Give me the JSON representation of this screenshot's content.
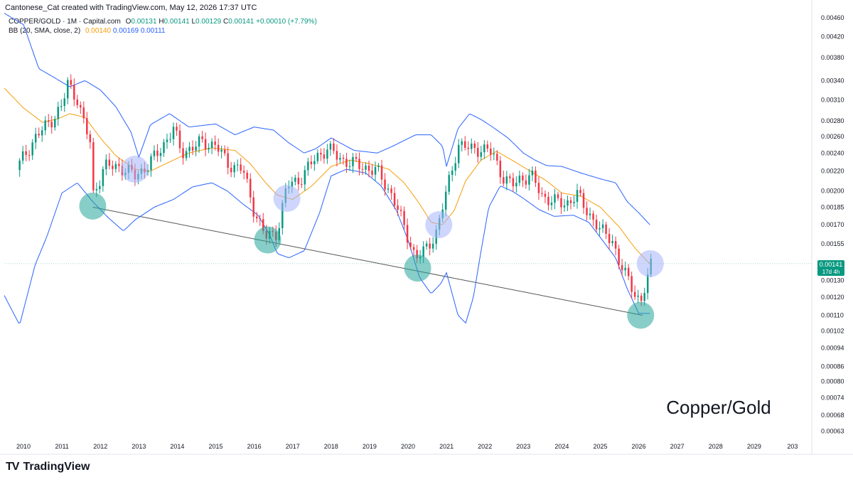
{
  "header": {
    "credit": "Cantonese_Cat created with TradingView.com, May 12, 2026 17:37 UTC"
  },
  "legend": {
    "symbol": "COPPER/GOLD · 1M · Capital.com",
    "ohlc": [
      {
        "k": "O",
        "v": "0.00131"
      },
      {
        "k": "H",
        "v": "0.00141"
      },
      {
        "k": "L",
        "v": "0.00129"
      },
      {
        "k": "C",
        "v": "0.00141"
      }
    ],
    "change": "+0.00010 (+7.79%)",
    "bb_label": "BB (20, SMA, close, 2)",
    "bb_values": [
      "0.00140",
      "0.00169",
      "0.00111"
    ]
  },
  "price_tag": {
    "value": "0.00141",
    "countdown": "17d 4h"
  },
  "watermark": "Copper/Gold",
  "brand": {
    "logo": "TV",
    "name": "TradingView"
  },
  "colors": {
    "up": "#089981",
    "down": "#f23645",
    "basis": "#f59e0b",
    "bands": "#2962ff",
    "green_circle": "#26a69a",
    "blue_circle": "#a5b4fc",
    "trendline": "#555555"
  },
  "chart_data": {
    "type": "candlestick",
    "interval": "1M",
    "x_range": [
      2009.5,
      2030.5
    ],
    "y_range": [
      0.00061,
      0.00471
    ],
    "y_scale": "log",
    "grid": false,
    "y_ticks": [
      "0.00460",
      "0.00420",
      "0.00380",
      "0.00340",
      "0.00310",
      "0.00280",
      "0.00260",
      "0.00240",
      "0.00220",
      "0.00200",
      "0.00185",
      "0.00170",
      "0.00155",
      "0.00141",
      "0.00130",
      "0.00120",
      "0.00110",
      "0.00102",
      "0.00094",
      "0.00086",
      "0.00080",
      "0.00074",
      "0.00068",
      "0.00063"
    ],
    "x_ticks": [
      "2010",
      "2011",
      "2012",
      "2013",
      "2014",
      "2015",
      "2016",
      "2017",
      "2018",
      "2019",
      "2020",
      "2021",
      "2022",
      "2023",
      "2024",
      "2025",
      "2026",
      "2027",
      "2028",
      "2029",
      "203"
    ],
    "close_anchors": [
      [
        2009.9,
        0.00228
      ],
      [
        2010.3,
        0.00258
      ],
      [
        2010.7,
        0.0028
      ],
      [
        2011.0,
        0.003
      ],
      [
        2011.15,
        0.00335
      ],
      [
        2011.4,
        0.00312
      ],
      [
        2011.55,
        0.0028
      ],
      [
        2011.75,
        0.0025
      ],
      [
        2011.8,
        0.00195
      ],
      [
        2012.1,
        0.00225
      ],
      [
        2012.5,
        0.00225
      ],
      [
        2012.9,
        0.00215
      ],
      [
        2013.2,
        0.00225
      ],
      [
        2013.5,
        0.0024
      ],
      [
        2013.9,
        0.0027
      ],
      [
        2014.1,
        0.0024
      ],
      [
        2014.6,
        0.00252
      ],
      [
        2015.0,
        0.0025
      ],
      [
        2015.3,
        0.00228
      ],
      [
        2015.7,
        0.00222
      ],
      [
        2016.0,
        0.00182
      ],
      [
        2016.3,
        0.0016
      ],
      [
        2016.6,
        0.00164
      ],
      [
        2016.85,
        0.00205
      ],
      [
        2017.2,
        0.00212
      ],
      [
        2017.6,
        0.00235
      ],
      [
        2017.9,
        0.00245
      ],
      [
        2018.3,
        0.00232
      ],
      [
        2018.8,
        0.00225
      ],
      [
        2019.2,
        0.0022
      ],
      [
        2019.6,
        0.00195
      ],
      [
        2019.9,
        0.00168
      ],
      [
        2020.2,
        0.00145
      ],
      [
        2020.45,
        0.0015
      ],
      [
        2020.75,
        0.00165
      ],
      [
        2020.9,
        0.00185
      ],
      [
        2021.1,
        0.00215
      ],
      [
        2021.3,
        0.0025
      ],
      [
        2021.6,
        0.00245
      ],
      [
        2021.9,
        0.00245
      ],
      [
        2022.2,
        0.0024
      ],
      [
        2022.45,
        0.00215
      ],
      [
        2022.7,
        0.00205
      ],
      [
        2022.9,
        0.00212
      ],
      [
        2023.2,
        0.00215
      ],
      [
        2023.5,
        0.00195
      ],
      [
        2023.8,
        0.0019
      ],
      [
        2024.1,
        0.00188
      ],
      [
        2024.4,
        0.00196
      ],
      [
        2024.7,
        0.0018
      ],
      [
        2025.0,
        0.00165
      ],
      [
        2025.3,
        0.0016
      ],
      [
        2025.5,
        0.0014
      ],
      [
        2025.8,
        0.00128
      ],
      [
        2026.05,
        0.00116
      ],
      [
        2026.2,
        0.00128
      ],
      [
        2026.32,
        0.00141
      ]
    ],
    "upper_band_anchors": [
      [
        2009.5,
        0.0047
      ],
      [
        2010.0,
        0.00445
      ],
      [
        2010.4,
        0.0036
      ],
      [
        2010.8,
        0.00345
      ],
      [
        2011.2,
        0.0033
      ],
      [
        2011.6,
        0.0034
      ],
      [
        2012.0,
        0.00325
      ],
      [
        2012.4,
        0.003
      ],
      [
        2012.8,
        0.00265
      ],
      [
        2013.0,
        0.00235
      ],
      [
        2013.3,
        0.00275
      ],
      [
        2013.8,
        0.0029
      ],
      [
        2014.3,
        0.00272
      ],
      [
        2015.0,
        0.00276
      ],
      [
        2015.5,
        0.00262
      ],
      [
        2016.0,
        0.00272
      ],
      [
        2016.5,
        0.00268
      ],
      [
        2016.9,
        0.00252
      ],
      [
        2017.3,
        0.0024
      ],
      [
        2017.6,
        0.00245
      ],
      [
        2018.0,
        0.00258
      ],
      [
        2018.6,
        0.00243
      ],
      [
        2019.2,
        0.0024
      ],
      [
        2019.6,
        0.00248
      ],
      [
        2020.2,
        0.00262
      ],
      [
        2020.6,
        0.00262
      ],
      [
        2020.9,
        0.00248
      ],
      [
        2021.0,
        0.00225
      ],
      [
        2021.3,
        0.0027
      ],
      [
        2021.6,
        0.0029
      ],
      [
        2021.9,
        0.00282
      ],
      [
        2022.2,
        0.00272
      ],
      [
        2022.6,
        0.00258
      ],
      [
        2023.0,
        0.0024
      ],
      [
        2023.3,
        0.00232
      ],
      [
        2023.6,
        0.00226
      ],
      [
        2024.0,
        0.00225
      ],
      [
        2024.5,
        0.00218
      ],
      [
        2025.0,
        0.00212
      ],
      [
        2025.4,
        0.00208
      ],
      [
        2025.7,
        0.0019
      ],
      [
        2026.0,
        0.0018
      ],
      [
        2026.32,
        0.00169
      ]
    ],
    "basis_anchors": [
      [
        2009.5,
        0.00328
      ],
      [
        2010.0,
        0.00298
      ],
      [
        2010.5,
        0.00278
      ],
      [
        2010.9,
        0.00283
      ],
      [
        2011.2,
        0.0029
      ],
      [
        2011.6,
        0.00285
      ],
      [
        2012.0,
        0.00258
      ],
      [
        2012.4,
        0.00237
      ],
      [
        2012.9,
        0.00222
      ],
      [
        2013.3,
        0.0022
      ],
      [
        2013.8,
        0.0023
      ],
      [
        2014.3,
        0.0024
      ],
      [
        2014.9,
        0.00246
      ],
      [
        2015.5,
        0.00243
      ],
      [
        2015.9,
        0.00228
      ],
      [
        2016.3,
        0.00208
      ],
      [
        2016.6,
        0.00196
      ],
      [
        2017.0,
        0.00192
      ],
      [
        2017.5,
        0.00205
      ],
      [
        2018.0,
        0.00225
      ],
      [
        2018.5,
        0.00232
      ],
      [
        2019.0,
        0.00228
      ],
      [
        2019.5,
        0.00222
      ],
      [
        2019.9,
        0.00208
      ],
      [
        2020.3,
        0.00188
      ],
      [
        2020.6,
        0.00172
      ],
      [
        2020.9,
        0.0017
      ],
      [
        2021.2,
        0.00182
      ],
      [
        2021.5,
        0.0021
      ],
      [
        2021.9,
        0.00232
      ],
      [
        2022.3,
        0.00242
      ],
      [
        2022.7,
        0.00232
      ],
      [
        2023.1,
        0.00222
      ],
      [
        2023.6,
        0.0021
      ],
      [
        2024.0,
        0.00198
      ],
      [
        2024.5,
        0.00195
      ],
      [
        2025.0,
        0.00185
      ],
      [
        2025.5,
        0.00168
      ],
      [
        2025.9,
        0.00152
      ],
      [
        2026.32,
        0.0014
      ]
    ],
    "lower_band_anchors": [
      [
        2009.5,
        0.00121
      ],
      [
        2009.9,
        0.00105
      ],
      [
        2010.3,
        0.0014
      ],
      [
        2010.6,
        0.0016
      ],
      [
        2011.0,
        0.00198
      ],
      [
        2011.4,
        0.00208
      ],
      [
        2011.8,
        0.0019
      ],
      [
        2012.2,
        0.00176
      ],
      [
        2012.6,
        0.00165
      ],
      [
        2012.9,
        0.00174
      ],
      [
        2013.4,
        0.00185
      ],
      [
        2013.9,
        0.00192
      ],
      [
        2014.4,
        0.00204
      ],
      [
        2014.9,
        0.00208
      ],
      [
        2015.3,
        0.002
      ],
      [
        2015.7,
        0.00188
      ],
      [
        2016.1,
        0.00178
      ],
      [
        2016.4,
        0.00162
      ],
      [
        2016.6,
        0.00148
      ],
      [
        2016.9,
        0.00145
      ],
      [
        2017.3,
        0.0015
      ],
      [
        2017.7,
        0.0018
      ],
      [
        2018.0,
        0.00215
      ],
      [
        2018.4,
        0.00222
      ],
      [
        2018.9,
        0.00218
      ],
      [
        2019.3,
        0.00205
      ],
      [
        2019.7,
        0.00182
      ],
      [
        2020.0,
        0.00158
      ],
      [
        2020.3,
        0.00132
      ],
      [
        2020.6,
        0.00122
      ],
      [
        2020.85,
        0.00128
      ],
      [
        2021.0,
        0.00135
      ],
      [
        2021.3,
        0.0011
      ],
      [
        2021.5,
        0.00106
      ],
      [
        2021.7,
        0.0012
      ],
      [
        2021.9,
        0.0015
      ],
      [
        2022.1,
        0.00185
      ],
      [
        2022.4,
        0.00205
      ],
      [
        2022.7,
        0.002
      ],
      [
        2023.0,
        0.00193
      ],
      [
        2023.4,
        0.00183
      ],
      [
        2023.8,
        0.00177
      ],
      [
        2024.3,
        0.00178
      ],
      [
        2024.7,
        0.00172
      ],
      [
        2025.0,
        0.0016
      ],
      [
        2025.4,
        0.00145
      ],
      [
        2025.7,
        0.00125
      ],
      [
        2026.0,
        0.00111
      ],
      [
        2026.32,
        0.00111
      ]
    ],
    "trendline": [
      [
        2011.8,
        0.00185
      ],
      [
        2026.1,
        0.0011
      ]
    ],
    "green_circles": [
      [
        2011.8,
        0.00186
      ],
      [
        2016.35,
        0.00158
      ],
      [
        2020.25,
        0.00138
      ],
      [
        2026.05,
        0.0011
      ]
    ],
    "blue_circles": [
      [
        2012.9,
        0.00222
      ],
      [
        2016.85,
        0.00193
      ],
      [
        2020.8,
        0.0017
      ],
      [
        2026.3,
        0.00141
      ]
    ],
    "last_price": 0.00141
  }
}
